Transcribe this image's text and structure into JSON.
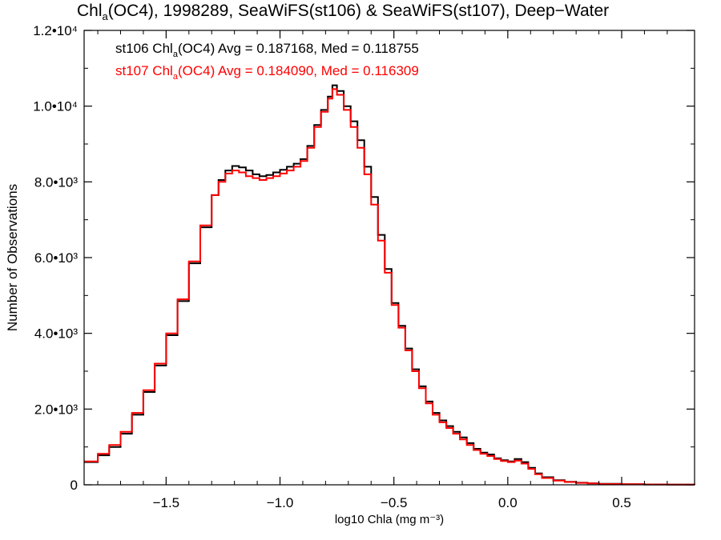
{
  "title": {
    "main": "Chl",
    "sub": "a",
    "rest": "(OC4), 1998289, SeaWiFS(st106) & SeaWiFS(st107), Deep−Water"
  },
  "annotations": [
    {
      "prefix": "st106 Chl",
      "sub": "a",
      "rest": "(OC4) Avg = 0.187168, Med = 0.118755",
      "color": "#000000"
    },
    {
      "prefix": "st107 Chl",
      "sub": "a",
      "rest": "(OC4) Avg = 0.184090, Med = 0.116309",
      "color": "#ff0000"
    }
  ],
  "chart_data": {
    "type": "line",
    "xlabel": "log10 Chla (mg m⁻³)",
    "ylabel": "Number of Observations",
    "xlim": [
      -1.86,
      0.82
    ],
    "ylim": [
      0,
      12000
    ],
    "x_ticks": [
      -1.5,
      -1.0,
      -0.5,
      0.0,
      0.5
    ],
    "x_tick_labels": [
      "−1.5",
      "−1.0",
      "−0.5",
      "0.0",
      "0.5"
    ],
    "y_ticks": [
      0,
      2000,
      4000,
      6000,
      8000,
      10000,
      12000
    ],
    "y_tick_labels": [
      "0",
      "2.0•10³",
      "4.0•10³",
      "6.0•10³",
      "8.0•10³",
      "1.0•10⁴",
      "1.2•10⁴"
    ],
    "grid": false,
    "style": "step",
    "series": [
      {
        "name": "st106",
        "color": "#000000",
        "x": [
          -1.86,
          -1.8,
          -1.75,
          -1.7,
          -1.65,
          -1.6,
          -1.55,
          -1.5,
          -1.45,
          -1.4,
          -1.35,
          -1.3,
          -1.27,
          -1.24,
          -1.21,
          -1.18,
          -1.15,
          -1.12,
          -1.09,
          -1.06,
          -1.03,
          -1.0,
          -0.97,
          -0.94,
          -0.91,
          -0.88,
          -0.85,
          -0.82,
          -0.79,
          -0.77,
          -0.75,
          -0.72,
          -0.69,
          -0.66,
          -0.63,
          -0.6,
          -0.57,
          -0.54,
          -0.51,
          -0.48,
          -0.45,
          -0.42,
          -0.39,
          -0.36,
          -0.33,
          -0.3,
          -0.27,
          -0.24,
          -0.21,
          -0.18,
          -0.15,
          -0.12,
          -0.09,
          -0.06,
          -0.03,
          0.0,
          0.03,
          0.06,
          0.09,
          0.12,
          0.15,
          0.2,
          0.25,
          0.3,
          0.35,
          0.4,
          0.5,
          0.6,
          0.7,
          0.82
        ],
        "y": [
          600,
          780,
          1000,
          1350,
          1850,
          2450,
          3150,
          3950,
          4850,
          5850,
          6800,
          7650,
          8050,
          8300,
          8420,
          8380,
          8300,
          8200,
          8150,
          8180,
          8250,
          8320,
          8400,
          8480,
          8600,
          8950,
          9500,
          9900,
          10250,
          10550,
          10400,
          10000,
          9600,
          9100,
          8400,
          7600,
          6600,
          5700,
          4800,
          4200,
          3600,
          3050,
          2600,
          2200,
          1900,
          1700,
          1550,
          1400,
          1250,
          1100,
          950,
          850,
          800,
          700,
          650,
          620,
          680,
          600,
          450,
          300,
          200,
          120,
          80,
          55,
          40,
          25,
          15,
          8,
          5,
          2
        ]
      },
      {
        "name": "st107",
        "color": "#ff0000",
        "x": [
          -1.86,
          -1.8,
          -1.75,
          -1.7,
          -1.65,
          -1.6,
          -1.55,
          -1.5,
          -1.45,
          -1.4,
          -1.35,
          -1.3,
          -1.27,
          -1.24,
          -1.21,
          -1.18,
          -1.15,
          -1.12,
          -1.09,
          -1.06,
          -1.03,
          -1.0,
          -0.97,
          -0.94,
          -0.91,
          -0.88,
          -0.85,
          -0.82,
          -0.79,
          -0.77,
          -0.75,
          -0.72,
          -0.69,
          -0.66,
          -0.63,
          -0.6,
          -0.57,
          -0.54,
          -0.51,
          -0.48,
          -0.45,
          -0.42,
          -0.39,
          -0.36,
          -0.33,
          -0.3,
          -0.27,
          -0.24,
          -0.21,
          -0.18,
          -0.15,
          -0.12,
          -0.09,
          -0.06,
          -0.03,
          0.0,
          0.03,
          0.06,
          0.09,
          0.12,
          0.15,
          0.2,
          0.25,
          0.3,
          0.35,
          0.4,
          0.5,
          0.6,
          0.7,
          0.82
        ],
        "y": [
          620,
          820,
          1050,
          1400,
          1900,
          2500,
          3200,
          4000,
          4900,
          5900,
          6850,
          7650,
          8000,
          8220,
          8300,
          8250,
          8150,
          8100,
          8050,
          8100,
          8150,
          8220,
          8300,
          8400,
          8550,
          8900,
          9450,
          9850,
          10200,
          10450,
          10300,
          9900,
          9450,
          8900,
          8200,
          7400,
          6450,
          5600,
          4750,
          4150,
          3550,
          3000,
          2550,
          2150,
          1850,
          1650,
          1500,
          1350,
          1200,
          1050,
          920,
          820,
          760,
          680,
          630,
          600,
          640,
          560,
          420,
          280,
          180,
          110,
          75,
          50,
          35,
          22,
          14,
          8,
          4,
          2
        ]
      }
    ]
  }
}
